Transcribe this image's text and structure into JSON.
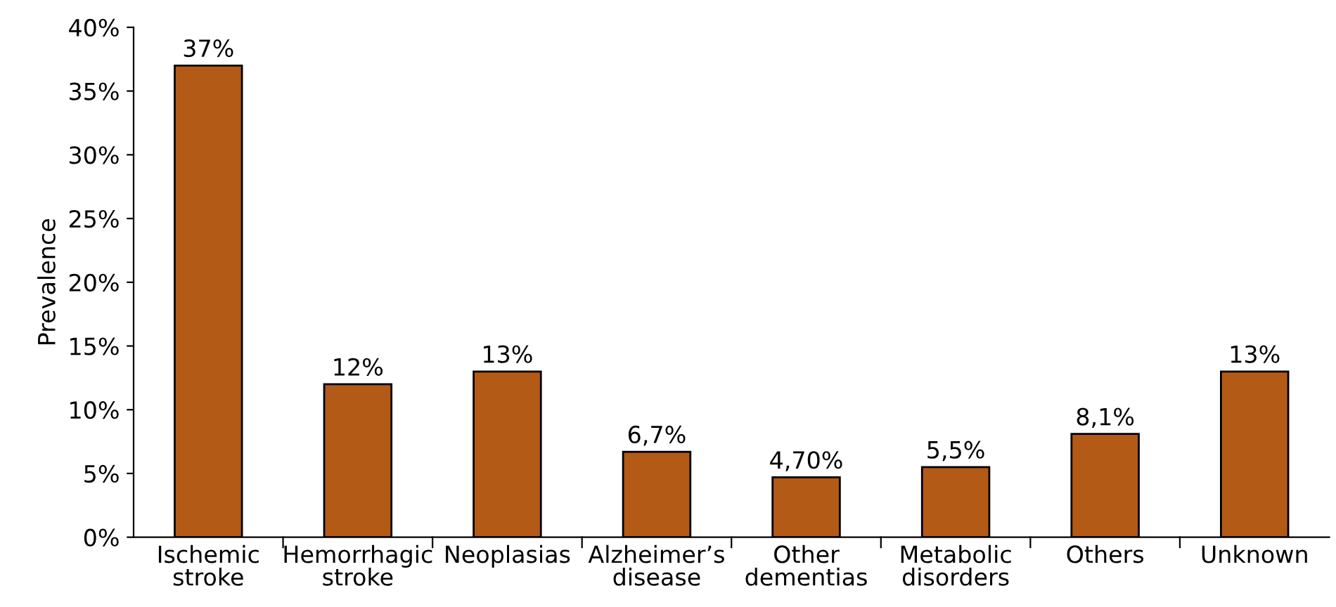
{
  "chart_data": {
    "type": "bar",
    "ylabel": "Prevalence",
    "categories": [
      "Ischemic\nstroke",
      "Hemorrhagic\nstroke",
      "Neoplasias",
      "Alzheimer’s\ndisease",
      "Other\ndementias",
      "Metabolic\ndisorders",
      "Others",
      "Unknown"
    ],
    "values": [
      37,
      12,
      13,
      6.7,
      4.7,
      5.5,
      8.1,
      13
    ],
    "value_labels": [
      "37%",
      "12%",
      "13%",
      "6,7%",
      "4,70%",
      "5,5%",
      "8,1%",
      "13%"
    ],
    "color": "#b35a17",
    "ylim": [
      0,
      40
    ],
    "yticks": [
      {
        "value": 0,
        "label": "0%"
      },
      {
        "value": 5,
        "label": "5%"
      },
      {
        "value": 10,
        "label": "10%"
      },
      {
        "value": 15,
        "label": "15%"
      },
      {
        "value": 20,
        "label": "20%"
      },
      {
        "value": 25,
        "label": "25%"
      },
      {
        "value": 30,
        "label": "30%"
      },
      {
        "value": 35,
        "label": "35%"
      },
      {
        "value": 40,
        "label": "40%"
      }
    ],
    "grid": false
  }
}
